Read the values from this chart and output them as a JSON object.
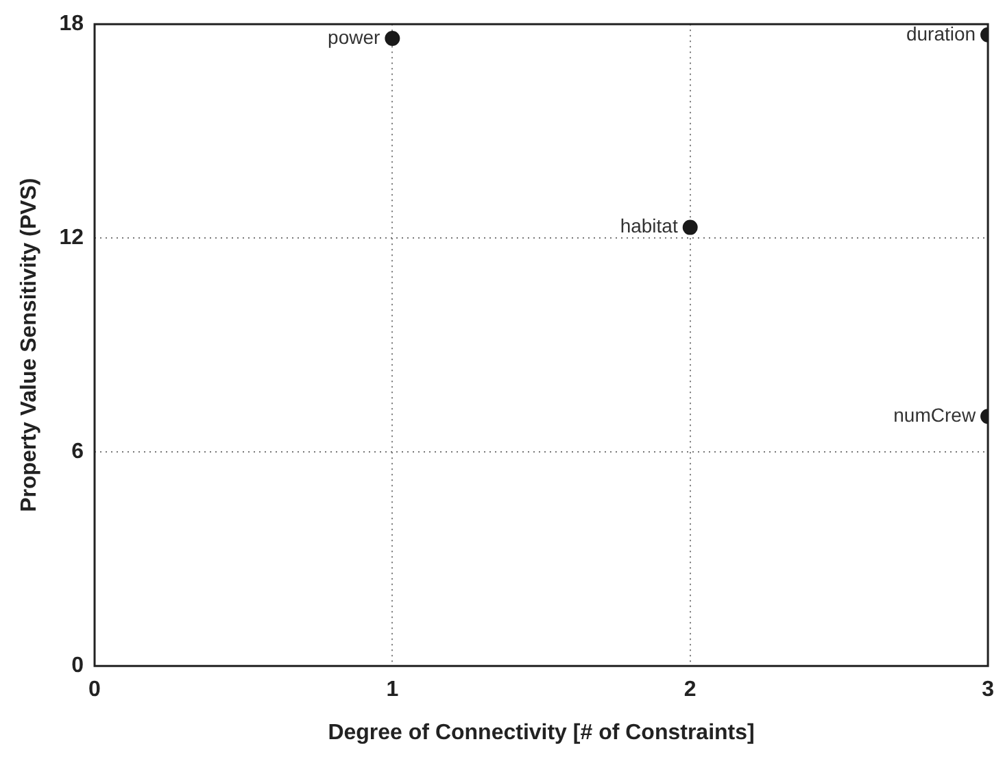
{
  "chart_data": {
    "type": "scatter",
    "xlabel": "Degree of Connectivity [# of Constraints]",
    "ylabel": "Property Value Sensitivity (PVS)",
    "x": [
      1,
      3,
      2,
      3
    ],
    "values": [
      17.6,
      17.7,
      12.3,
      7.0
    ],
    "color": "#1a1a1a",
    "marker": "circle",
    "xlim": [
      0,
      3
    ],
    "xticks": [
      0,
      1,
      2,
      3
    ],
    "ylim": [
      0,
      18
    ],
    "yticks": [
      0,
      6,
      12,
      18
    ],
    "grid": true,
    "legend": false,
    "annotations": [
      {
        "text": "power",
        "x": 1,
        "y": 17.6
      },
      {
        "text": "duration",
        "x": 3,
        "y": 17.7
      },
      {
        "text": "habitat",
        "x": 2,
        "y": 12.3
      },
      {
        "text": "numCrew",
        "x": 3,
        "y": 7.0
      }
    ]
  }
}
